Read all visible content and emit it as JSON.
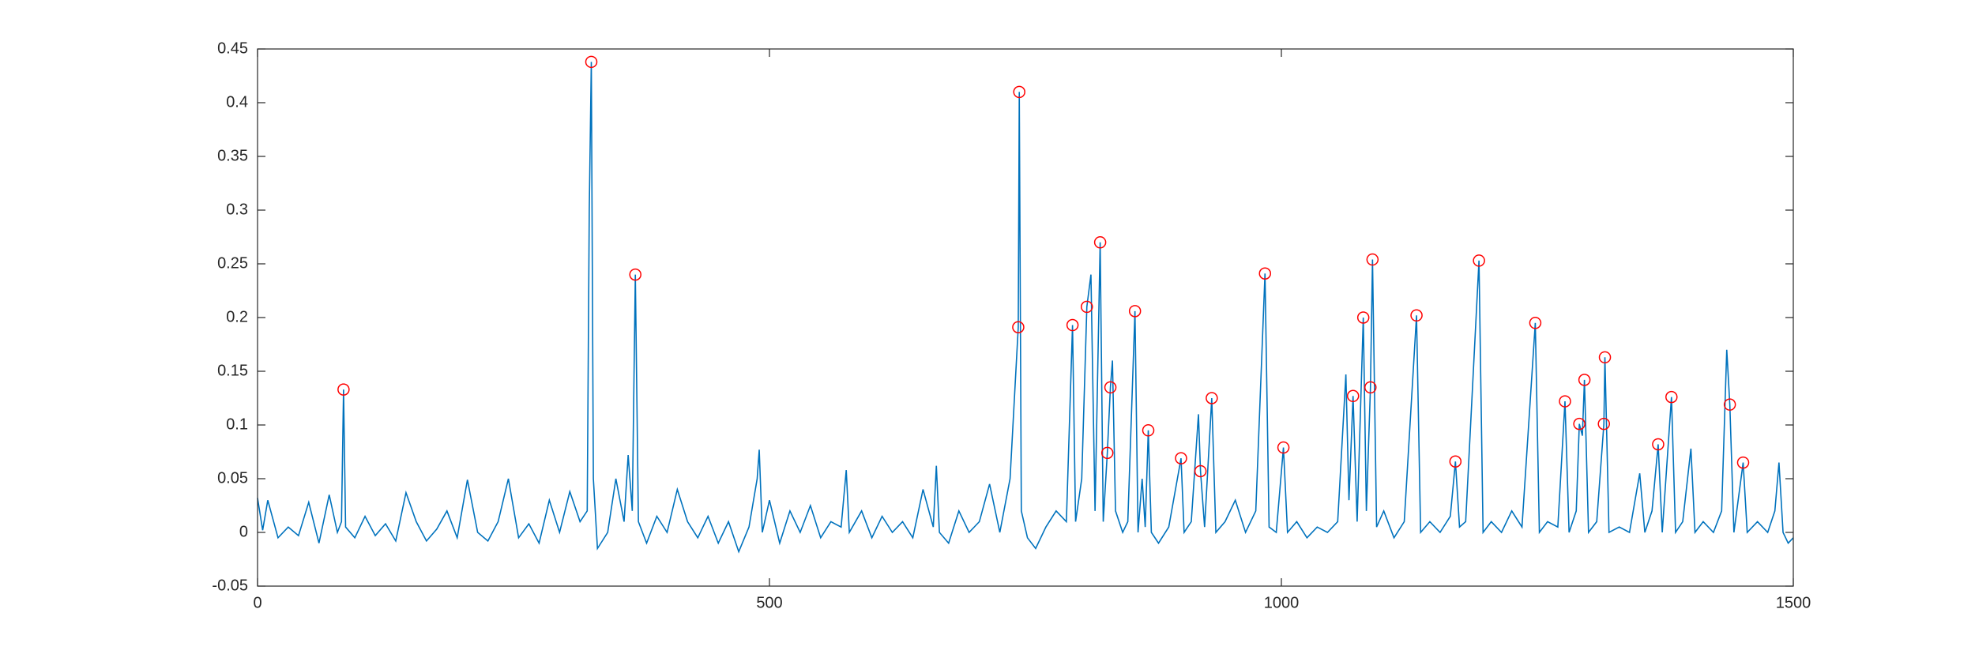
{
  "chart_data": {
    "type": "line",
    "xlim": [
      0,
      1500
    ],
    "xticks": [
      0,
      500,
      1000,
      1500
    ],
    "ylim": [
      -0.05,
      0.45
    ],
    "yticks": [
      -0.05,
      0,
      0.05,
      0.1,
      0.15,
      0.2,
      0.25,
      0.3,
      0.35,
      0.4,
      0.45
    ],
    "box": true,
    "series": [
      {
        "style": "line",
        "color": "#0072bd",
        "x": [
          0,
          5,
          10,
          20,
          30,
          40,
          50,
          60,
          70,
          78,
          82,
          84,
          86,
          95,
          105,
          115,
          125,
          135,
          145,
          155,
          165,
          175,
          185,
          195,
          205,
          215,
          225,
          235,
          245,
          255,
          265,
          275,
          285,
          295,
          305,
          315,
          322,
          324,
          326,
          328,
          332,
          342,
          350,
          358,
          362,
          366,
          369,
          372,
          380,
          390,
          400,
          410,
          420,
          430,
          440,
          450,
          460,
          470,
          480,
          488,
          490,
          493,
          500,
          510,
          520,
          530,
          540,
          550,
          560,
          570,
          575,
          578,
          590,
          600,
          610,
          620,
          630,
          640,
          650,
          660,
          663,
          666,
          675,
          685,
          695,
          705,
          715,
          725,
          735,
          743,
          744,
          746,
          752,
          760,
          770,
          780,
          790,
          796,
          799,
          805,
          810,
          814,
          818,
          823,
          826,
          830,
          833,
          835,
          838,
          845,
          850,
          857,
          860,
          864,
          867,
          870,
          873,
          880,
          890,
          902,
          905,
          912,
          919,
          921,
          925,
          932,
          936,
          945,
          955,
          965,
          975,
          984,
          988,
          995,
          1002,
          1006,
          1015,
          1025,
          1035,
          1045,
          1055,
          1063,
          1066,
          1070,
          1074,
          1080,
          1083,
          1087,
          1089,
          1093,
          1100,
          1110,
          1120,
          1132,
          1136,
          1145,
          1155,
          1165,
          1170,
          1174,
          1180,
          1193,
          1197,
          1205,
          1215,
          1225,
          1235,
          1248,
          1252,
          1260,
          1270,
          1277,
          1281,
          1288,
          1291,
          1294,
          1296,
          1300,
          1308,
          1315,
          1316,
          1320,
          1330,
          1340,
          1350,
          1355,
          1362,
          1368,
          1372,
          1381,
          1385,
          1392,
          1400,
          1404,
          1412,
          1422,
          1430,
          1435,
          1438,
          1442,
          1451,
          1455,
          1465,
          1475,
          1482,
          1486,
          1490,
          1495,
          1500
        ],
        "values": [
          0.032,
          0.002,
          0.03,
          -0.005,
          0.005,
          -0.003,
          0.028,
          -0.01,
          0.035,
          0.0,
          0.01,
          0.133,
          0.005,
          -0.005,
          0.015,
          -0.003,
          0.008,
          -0.008,
          0.037,
          0.01,
          -0.008,
          0.003,
          0.02,
          -0.005,
          0.049,
          0.0,
          -0.008,
          0.01,
          0.05,
          -0.005,
          0.008,
          -0.01,
          0.03,
          0.0,
          0.038,
          0.01,
          0.02,
          0.3,
          0.438,
          0.05,
          -0.015,
          0.0,
          0.05,
          0.01,
          0.072,
          0.02,
          0.24,
          0.01,
          -0.01,
          0.015,
          0.0,
          0.04,
          0.01,
          -0.005,
          0.015,
          -0.01,
          0.01,
          -0.018,
          0.005,
          0.05,
          0.077,
          0.0,
          0.03,
          -0.01,
          0.02,
          0.0,
          0.025,
          -0.005,
          0.01,
          0.005,
          0.058,
          0.0,
          0.02,
          -0.005,
          0.015,
          0.0,
          0.01,
          -0.005,
          0.04,
          0.005,
          0.062,
          0.0,
          -0.01,
          0.02,
          0.0,
          0.01,
          0.045,
          0.0,
          0.05,
          0.191,
          0.41,
          0.02,
          -0.005,
          -0.015,
          0.005,
          0.02,
          0.01,
          0.193,
          0.01,
          0.05,
          0.21,
          0.24,
          0.02,
          0.27,
          0.01,
          0.074,
          0.135,
          0.16,
          0.02,
          0.0,
          0.01,
          0.206,
          0.0,
          0.05,
          0.005,
          0.095,
          0.0,
          -0.01,
          0.005,
          0.069,
          0.0,
          0.01,
          0.11,
          0.057,
          0.005,
          0.125,
          0.0,
          0.01,
          0.03,
          0.0,
          0.02,
          0.241,
          0.005,
          0.0,
          0.079,
          0.0,
          0.01,
          -0.005,
          0.005,
          0.0,
          0.01,
          0.147,
          0.03,
          0.127,
          0.01,
          0.2,
          0.02,
          0.135,
          0.254,
          0.005,
          0.02,
          -0.005,
          0.01,
          0.202,
          0.0,
          0.01,
          0.0,
          0.015,
          0.066,
          0.005,
          0.01,
          0.253,
          0.0,
          0.01,
          0.0,
          0.02,
          0.005,
          0.195,
          0.0,
          0.01,
          0.005,
          0.122,
          0.0,
          0.02,
          0.101,
          0.09,
          0.142,
          0.0,
          0.01,
          0.101,
          0.163,
          0.0,
          0.005,
          0.0,
          0.055,
          0.0,
          0.02,
          0.082,
          0.0,
          0.126,
          0.0,
          0.01,
          0.078,
          0.0,
          0.01,
          0.0,
          0.02,
          0.17,
          0.119,
          0.0,
          0.065,
          0.0,
          0.01,
          0.0,
          0.02,
          0.065,
          0.0,
          -0.01,
          -0.005
        ]
      },
      {
        "style": "markers",
        "marker": "circle",
        "color": "#ff0000",
        "x": [
          84,
          326,
          369,
          743,
          744,
          796,
          810,
          823,
          830,
          833,
          857,
          870,
          902,
          921,
          932,
          984,
          1002,
          1070,
          1080,
          1087,
          1089,
          1132,
          1170,
          1193,
          1248,
          1277,
          1291,
          1296,
          1315,
          1316,
          1368,
          1381,
          1438,
          1451
        ],
        "values": [
          0.133,
          0.438,
          0.24,
          0.191,
          0.41,
          0.193,
          0.21,
          0.27,
          0.074,
          0.135,
          0.206,
          0.095,
          0.069,
          0.057,
          0.125,
          0.241,
          0.079,
          0.127,
          0.2,
          0.135,
          0.254,
          0.202,
          0.066,
          0.253,
          0.195,
          0.122,
          0.101,
          0.142,
          0.101,
          0.163,
          0.082,
          0.126,
          0.119,
          0.065
        ]
      }
    ]
  }
}
